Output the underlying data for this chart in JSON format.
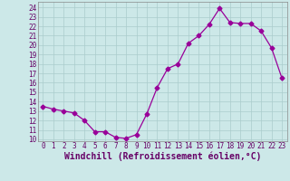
{
  "x": [
    0,
    1,
    2,
    3,
    4,
    5,
    6,
    7,
    8,
    9,
    10,
    11,
    12,
    13,
    14,
    15,
    16,
    17,
    18,
    19,
    20,
    21,
    22,
    23
  ],
  "y": [
    13.5,
    13.2,
    13.0,
    12.8,
    12.0,
    10.8,
    10.8,
    10.2,
    10.1,
    10.5,
    12.7,
    15.5,
    17.5,
    18.0,
    20.2,
    21.0,
    22.2,
    23.9,
    22.4,
    22.3,
    22.3,
    21.5,
    19.7,
    16.5
  ],
  "line_color": "#990099",
  "marker": "D",
  "marker_size": 2.5,
  "bg_color": "#cce8e8",
  "grid_color": "#aacccc",
  "xlabel": "Windchill (Refroidissement éolien,°C)",
  "ylabel_ticks": [
    10,
    11,
    12,
    13,
    14,
    15,
    16,
    17,
    18,
    19,
    20,
    21,
    22,
    23,
    24
  ],
  "xlim": [
    -0.5,
    23.5
  ],
  "ylim": [
    9.8,
    24.6
  ],
  "xlabel_color": "#660066",
  "tick_color": "#660066",
  "tick_fontsize": 5.5,
  "label_fontsize": 7.0
}
